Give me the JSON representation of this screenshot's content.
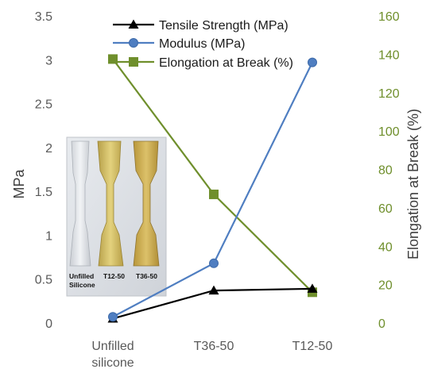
{
  "chart_data": {
    "type": "line",
    "categories": [
      "Unfilled silicone",
      "T36-50",
      "T12-50"
    ],
    "category_lines": [
      [
        "Unfilled",
        "silicone"
      ],
      [
        "T36-50"
      ],
      [
        "T12-50"
      ]
    ],
    "ylabel": "MPa",
    "ylim": [
      0,
      3.5
    ],
    "yticks": [
      "0",
      "0.5",
      "1",
      "1.5",
      "2",
      "2.5",
      "3",
      "3.5"
    ],
    "y2label": "Elongation at Break (%)",
    "y2lim": [
      0,
      160
    ],
    "y2ticks": [
      "0",
      "20",
      "40",
      "60",
      "80",
      "100",
      "120",
      "140",
      "160"
    ],
    "grid": false,
    "legend_position": "top",
    "series": [
      {
        "name": "Tensile Strength (MPa)",
        "axis": "left",
        "values": [
          0.05,
          0.37,
          0.39
        ],
        "color": "#000000",
        "marker": "triangle"
      },
      {
        "name": "Modulus (MPa)",
        "axis": "left",
        "values": [
          0.07,
          0.68,
          2.97
        ],
        "color": "#4f7ec1",
        "marker": "circle"
      },
      {
        "name": "Elongation at Break (%)",
        "axis": "right",
        "values": [
          137.5,
          67,
          16
        ],
        "color": "#6f8f2c",
        "marker": "square"
      }
    ],
    "inset_photo": {
      "labels": [
        [
          "Unfilled",
          "Silicone"
        ],
        [
          "T12-50"
        ],
        [
          "T36-50"
        ]
      ]
    }
  }
}
